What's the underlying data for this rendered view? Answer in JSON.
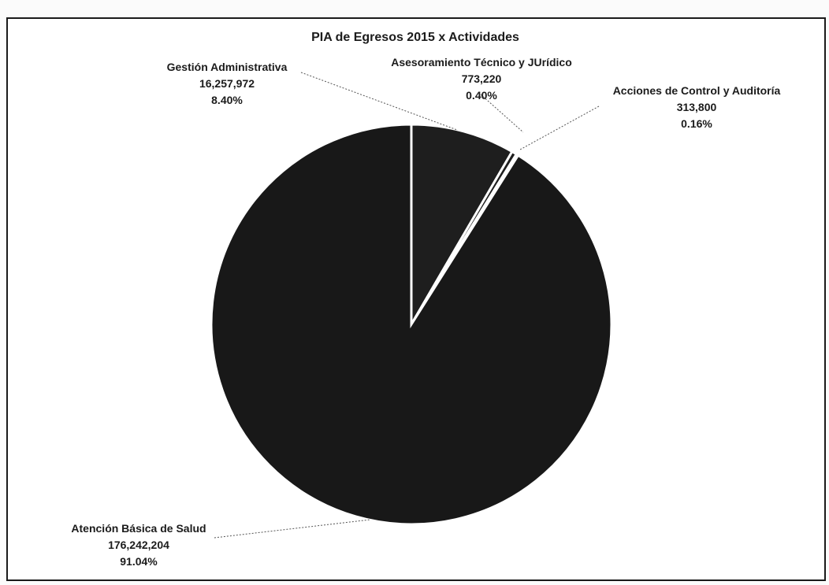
{
  "chart_data": {
    "type": "pie",
    "title": "PIA de Egresos 2015 x Actividades",
    "slices": [
      {
        "label": "Gestión Administrativa",
        "value": 16257972,
        "value_text": "16,257,972",
        "percent": 8.4,
        "percent_text": "8.40%",
        "color": "#1e1e1e"
      },
      {
        "label": "Asesoramiento Técnico y JUrídico",
        "value": 773220,
        "value_text": "773,220",
        "percent": 0.4,
        "percent_text": "0.40%",
        "color": "#1e1e1e"
      },
      {
        "label": "Acciones de Control y Auditoría",
        "value": 313800,
        "value_text": "313,800",
        "percent": 0.16,
        "percent_text": "0.16%",
        "color": "#1e1e1e"
      },
      {
        "label": "Atención Básica de Salud",
        "value": 176242204,
        "value_text": "176,242,204",
        "percent": 91.04,
        "percent_text": "91.04%",
        "color": "#181818"
      }
    ],
    "start_angle_deg": 0,
    "direction": "clockwise",
    "slice_border_color": "#ffffff",
    "legend": "none",
    "data_labels": "outside-with-leader-lines"
  }
}
